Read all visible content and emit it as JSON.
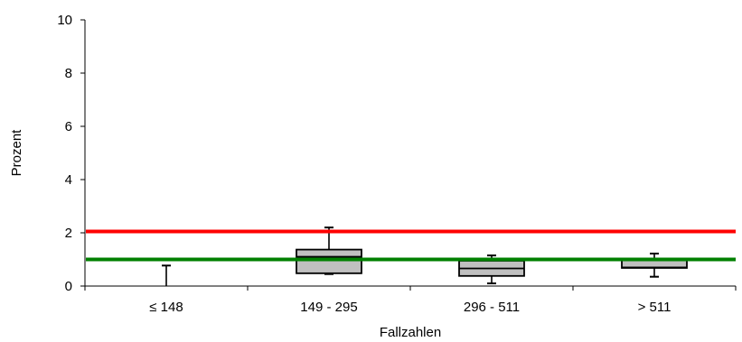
{
  "chart_data": {
    "type": "boxplot",
    "xlabel": "Fallzahlen",
    "ylabel": "Prozent",
    "ylim": [
      0,
      10
    ],
    "yticks": [
      0,
      2,
      4,
      6,
      8,
      10
    ],
    "categories": [
      "≤ 148",
      "149 - 295",
      "296 - 511",
      "> 511"
    ],
    "boxes": [
      {
        "category": "≤ 148",
        "min": 0.0,
        "q1": 0.0,
        "median": 0.0,
        "q3": 0.0,
        "max": 0.77
      },
      {
        "category": "149 - 295",
        "min": 0.45,
        "q1": 0.48,
        "median": 1.1,
        "q3": 1.37,
        "max": 2.2
      },
      {
        "category": "296 - 511",
        "min": 0.1,
        "q1": 0.38,
        "median": 0.66,
        "q3": 0.95,
        "max": 1.15
      },
      {
        "category": "> 511",
        "min": 0.35,
        "q1": 0.68,
        "median": 0.7,
        "q3": 0.98,
        "max": 1.22
      }
    ],
    "reference_lines": [
      {
        "value": 2.05,
        "color": "#ff0000"
      },
      {
        "value": 1.0,
        "color": "#008000"
      }
    ],
    "box_fill": "#c0c0c0",
    "grid": false
  }
}
